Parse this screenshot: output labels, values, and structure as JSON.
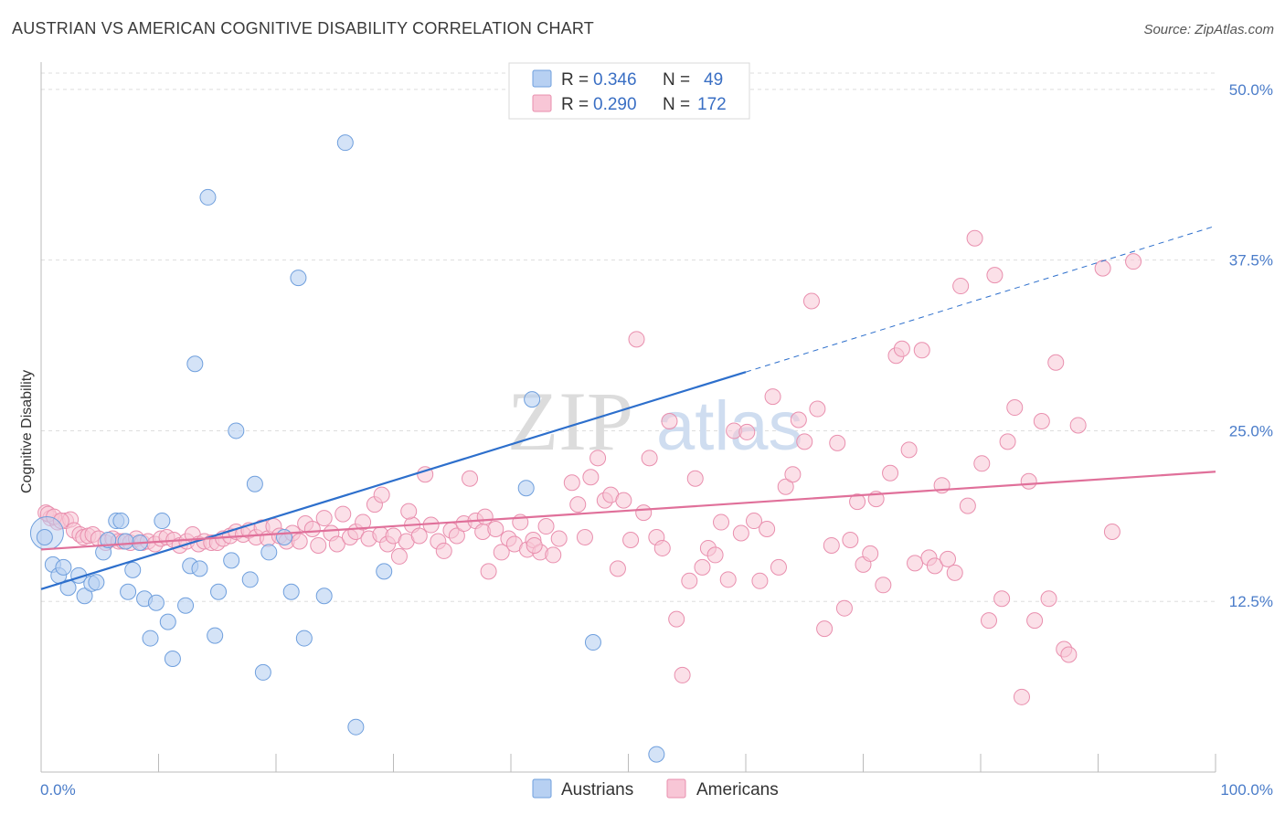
{
  "title": "AUSTRIAN VS AMERICAN COGNITIVE DISABILITY CORRELATION CHART",
  "source": "Source: ZipAtlas.com",
  "watermark": {
    "zip": "ZIP",
    "atlas": "atlas"
  },
  "colors": {
    "austrians_fill": "#b7d0f2",
    "austrians_stroke": "#6f9fdd",
    "austrians_line": "#2d6fcc",
    "americans_fill": "#f8c6d6",
    "americans_stroke": "#e98fae",
    "americans_line": "#e0709a",
    "tick_label": "#4a7cc9",
    "grid": "#dddddd"
  },
  "legend": {
    "rows": [
      {
        "r_label": "R = ",
        "r_value": "0.346",
        "n_label": "N = ",
        "n_value": "49"
      },
      {
        "r_label": "R = ",
        "r_value": "0.290",
        "n_label": "N = ",
        "n_value": "172"
      }
    ]
  },
  "chart_data": {
    "type": "scatter",
    "title": "AUSTRIAN VS AMERICAN COGNITIVE DISABILITY CORRELATION CHART",
    "ylabel": "Cognitive Disability",
    "xlabel": "",
    "xlim": [
      0,
      100
    ],
    "ylim": [
      0,
      52
    ],
    "x_tick_labels": [
      {
        "value": 0,
        "label": "0.0%"
      },
      {
        "value": 100,
        "label": "100.0%"
      }
    ],
    "y_tick_labels": [
      {
        "value": 12.5,
        "label": "12.5%"
      },
      {
        "value": 25,
        "label": "25.0%"
      },
      {
        "value": 37.5,
        "label": "37.5%"
      },
      {
        "value": 50,
        "label": "50.0%"
      }
    ],
    "grid": true,
    "legend_position": "top-center",
    "series": [
      {
        "name": "Austrians",
        "r": 0.346,
        "n": 49,
        "trend": {
          "x0": 0,
          "y0": 13.4,
          "x1": 60,
          "y1": 29.3,
          "dash_to_x": 100,
          "dash_to_y": 40
        },
        "points": [
          [
            0.5,
            17.5
          ],
          [
            1,
            15.2
          ],
          [
            1.5,
            14.4
          ],
          [
            1.9,
            15
          ],
          [
            2.3,
            13.5
          ],
          [
            3.2,
            14.4
          ],
          [
            3.7,
            12.9
          ],
          [
            4.3,
            13.8
          ],
          [
            4.7,
            13.9
          ],
          [
            5.3,
            16.1
          ],
          [
            5.7,
            17
          ],
          [
            6.4,
            18.4
          ],
          [
            6.8,
            18.4
          ],
          [
            7.4,
            13.2
          ],
          [
            7.8,
            14.8
          ],
          [
            8.4,
            16.8
          ],
          [
            8.8,
            12.7
          ],
          [
            9.3,
            9.8
          ],
          [
            9.8,
            12.4
          ],
          [
            10.3,
            18.4
          ],
          [
            10.8,
            11
          ],
          [
            11.2,
            8.3
          ],
          [
            12.3,
            12.2
          ],
          [
            12.7,
            15.1
          ],
          [
            13.1,
            29.9
          ],
          [
            13.5,
            14.9
          ],
          [
            14.2,
            42.1
          ],
          [
            14.8,
            10
          ],
          [
            15.1,
            13.2
          ],
          [
            16.2,
            15.5
          ],
          [
            16.6,
            25
          ],
          [
            17.8,
            14.1
          ],
          [
            18.2,
            21.1
          ],
          [
            18.9,
            7.3
          ],
          [
            19.4,
            16.1
          ],
          [
            20.7,
            17.2
          ],
          [
            21.3,
            13.2
          ],
          [
            21.9,
            36.2
          ],
          [
            22.4,
            9.8
          ],
          [
            24.1,
            12.9
          ],
          [
            25.9,
            46.1
          ],
          [
            26.8,
            3.3
          ],
          [
            29.2,
            14.7
          ],
          [
            41.8,
            27.3
          ],
          [
            41.3,
            20.8
          ],
          [
            47,
            9.5
          ],
          [
            52.4,
            1.3
          ],
          [
            0.3,
            17.2
          ],
          [
            7.2,
            16.9
          ]
        ]
      },
      {
        "name": "Americans",
        "r": 0.29,
        "n": 172,
        "trend": {
          "x0": 0,
          "y0": 16.3,
          "x1": 100,
          "y1": 22
        },
        "points": [
          [
            0.4,
            19
          ],
          [
            0.8,
            18.6
          ],
          [
            1.4,
            18.3
          ],
          [
            2.1,
            18.4
          ],
          [
            2.5,
            18.5
          ],
          [
            2.8,
            17.7
          ],
          [
            3.3,
            17.4
          ],
          [
            3.6,
            17.2
          ],
          [
            4,
            17.3
          ],
          [
            4.4,
            17.4
          ],
          [
            4.9,
            17.1
          ],
          [
            5.5,
            16.8
          ],
          [
            6.1,
            17.1
          ],
          [
            6.6,
            16.9
          ],
          [
            7,
            16.9
          ],
          [
            7.6,
            16.8
          ],
          [
            8.1,
            17.1
          ],
          [
            8.6,
            16.8
          ],
          [
            9.1,
            16.9
          ],
          [
            9.7,
            16.7
          ],
          [
            10.2,
            17.1
          ],
          [
            10.7,
            17.2
          ],
          [
            11.3,
            17
          ],
          [
            11.8,
            16.6
          ],
          [
            12.4,
            16.9
          ],
          [
            12.9,
            17.4
          ],
          [
            13.4,
            16.7
          ],
          [
            13.9,
            16.9
          ],
          [
            14.5,
            16.8
          ],
          [
            15,
            16.8
          ],
          [
            15.5,
            17.1
          ],
          [
            16.1,
            17.3
          ],
          [
            16.6,
            17.6
          ],
          [
            17.2,
            17.4
          ],
          [
            17.7,
            17.7
          ],
          [
            18.3,
            17.2
          ],
          [
            18.8,
            17.9
          ],
          [
            19.3,
            17.1
          ],
          [
            19.8,
            18
          ],
          [
            20.3,
            17.3
          ],
          [
            20.9,
            16.9
          ],
          [
            21.4,
            17.5
          ],
          [
            22,
            16.9
          ],
          [
            22.5,
            18.2
          ],
          [
            23.1,
            17.8
          ],
          [
            23.6,
            16.6
          ],
          [
            24.1,
            18.6
          ],
          [
            24.7,
            17.5
          ],
          [
            25.2,
            16.7
          ],
          [
            25.7,
            18.9
          ],
          [
            26.3,
            17.2
          ],
          [
            26.8,
            17.6
          ],
          [
            27.4,
            18.3
          ],
          [
            27.9,
            17.1
          ],
          [
            28.4,
            19.6
          ],
          [
            28.9,
            17.4
          ],
          [
            29.5,
            16.7
          ],
          [
            30,
            17.3
          ],
          [
            30.5,
            15.8
          ],
          [
            31.1,
            16.9
          ],
          [
            31.6,
            18.1
          ],
          [
            32.2,
            17.3
          ],
          [
            32.7,
            21.8
          ],
          [
            33.2,
            18.1
          ],
          [
            33.8,
            16.9
          ],
          [
            34.3,
            16.2
          ],
          [
            34.9,
            17.7
          ],
          [
            35.4,
            17.3
          ],
          [
            36,
            18.2
          ],
          [
            36.5,
            21.5
          ],
          [
            37,
            18.4
          ],
          [
            37.6,
            17.6
          ],
          [
            38.1,
            14.7
          ],
          [
            38.7,
            17.8
          ],
          [
            39.2,
            16.1
          ],
          [
            39.8,
            17.1
          ],
          [
            40.3,
            16.7
          ],
          [
            40.8,
            18.3
          ],
          [
            41.4,
            16.3
          ],
          [
            41.9,
            17
          ],
          [
            42.5,
            16.1
          ],
          [
            43,
            18
          ],
          [
            43.6,
            15.9
          ],
          [
            44.1,
            17.1
          ],
          [
            45.2,
            21.2
          ],
          [
            45.7,
            19.6
          ],
          [
            46.3,
            17.2
          ],
          [
            46.8,
            21.6
          ],
          [
            47.4,
            23
          ],
          [
            48,
            19.9
          ],
          [
            48.5,
            20.3
          ],
          [
            49.1,
            14.9
          ],
          [
            49.6,
            19.9
          ],
          [
            50.2,
            17
          ],
          [
            50.7,
            31.7
          ],
          [
            51.3,
            19
          ],
          [
            51.8,
            23
          ],
          [
            52.4,
            17.2
          ],
          [
            52.9,
            16.4
          ],
          [
            53.5,
            25.7
          ],
          [
            54.1,
            11.2
          ],
          [
            54.6,
            7.1
          ],
          [
            55.2,
            14
          ],
          [
            55.7,
            21.5
          ],
          [
            56.3,
            15
          ],
          [
            56.8,
            16.4
          ],
          [
            57.4,
            15.9
          ],
          [
            57.9,
            18.3
          ],
          [
            58.5,
            14.1
          ],
          [
            59,
            25
          ],
          [
            59.6,
            17.5
          ],
          [
            60.1,
            24.9
          ],
          [
            60.7,
            18.4
          ],
          [
            61.2,
            14
          ],
          [
            61.8,
            17.8
          ],
          [
            62.3,
            27.5
          ],
          [
            62.8,
            15
          ],
          [
            63.4,
            20.9
          ],
          [
            64,
            21.8
          ],
          [
            64.5,
            25.8
          ],
          [
            65,
            24.2
          ],
          [
            65.6,
            34.5
          ],
          [
            66.1,
            26.6
          ],
          [
            66.7,
            10.5
          ],
          [
            67.3,
            16.6
          ],
          [
            67.8,
            24.1
          ],
          [
            68.4,
            12
          ],
          [
            68.9,
            17
          ],
          [
            69.5,
            19.8
          ],
          [
            70,
            15.2
          ],
          [
            70.6,
            16
          ],
          [
            71.1,
            20
          ],
          [
            71.7,
            13.7
          ],
          [
            72.3,
            21.9
          ],
          [
            72.8,
            30.5
          ],
          [
            73.3,
            31
          ],
          [
            73.9,
            23.6
          ],
          [
            74.4,
            15.3
          ],
          [
            75,
            30.9
          ],
          [
            75.6,
            15.7
          ],
          [
            76.1,
            15.1
          ],
          [
            76.7,
            21
          ],
          [
            77.2,
            15.6
          ],
          [
            77.8,
            14.6
          ],
          [
            78.3,
            35.6
          ],
          [
            78.9,
            19.5
          ],
          [
            79.5,
            39.1
          ],
          [
            80.1,
            22.6
          ],
          [
            80.7,
            11.1
          ],
          [
            81.2,
            36.4
          ],
          [
            81.8,
            12.7
          ],
          [
            82.3,
            24.2
          ],
          [
            82.9,
            26.7
          ],
          [
            83.5,
            5.5
          ],
          [
            84.1,
            21.3
          ],
          [
            84.6,
            11.1
          ],
          [
            85.2,
            25.7
          ],
          [
            85.8,
            12.7
          ],
          [
            86.4,
            30
          ],
          [
            87.1,
            9
          ],
          [
            87.5,
            8.6
          ],
          [
            88.3,
            25.4
          ],
          [
            90.4,
            36.9
          ],
          [
            91.2,
            17.6
          ],
          [
            93,
            37.4
          ],
          [
            0.6,
            18.9
          ],
          [
            1.1,
            18.7
          ],
          [
            1.7,
            18.4
          ],
          [
            29,
            20.3
          ],
          [
            31.3,
            19.1
          ],
          [
            37.8,
            18.7
          ],
          [
            42,
            16.6
          ]
        ]
      }
    ]
  },
  "bottom_legend": [
    {
      "label": "Austrians"
    },
    {
      "label": "Americans"
    }
  ]
}
